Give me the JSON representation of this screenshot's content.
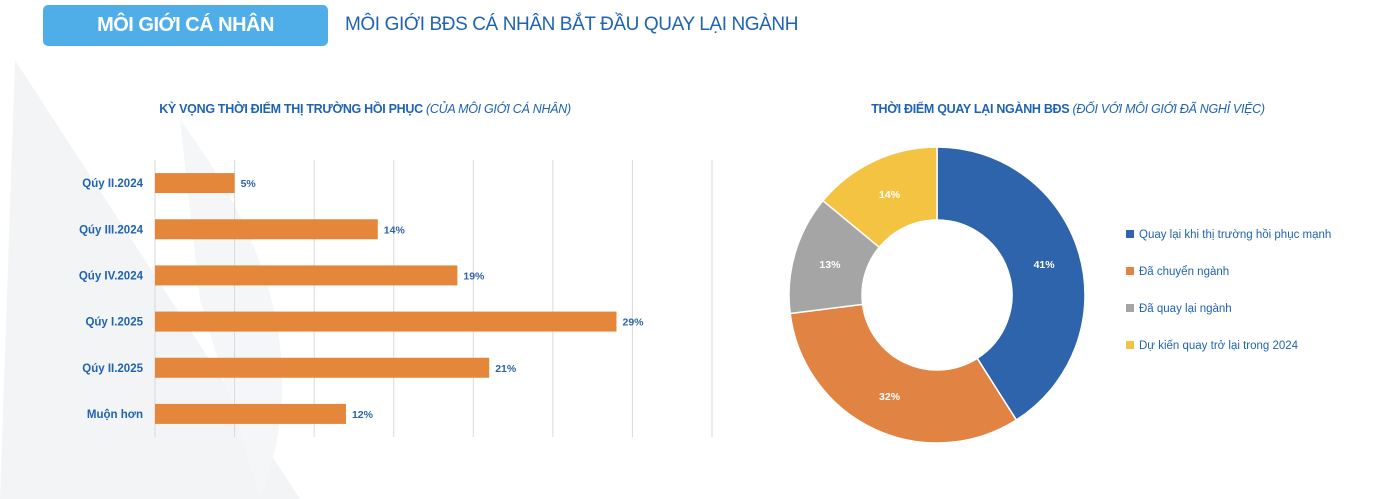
{
  "header": {
    "badge": "MÔI GIỚI CÁ NHÂN",
    "headline": "MÔI GIỚI BĐS CÁ NHÂN BẮT ĐẦU QUAY LẠI NGÀNH"
  },
  "colors": {
    "accent": "#4FAEE8",
    "text": "#1F63B3",
    "bar": "#E5873A"
  },
  "chart_data": [
    {
      "type": "bar",
      "orientation": "horizontal",
      "title": "KỲ VỌNG THỜI ĐIỂM THỊ TRƯỜNG HỒI PHỤC",
      "subtitle": "(CỦA MÔI GIỚI CÁ NHÂN)",
      "categories": [
        "Qúy II.2024",
        "Qúy III.2024",
        "Qúy IV.2024",
        "Qúy I.2025",
        "Qúy II.2025",
        "Muộn hơn"
      ],
      "values": [
        5,
        14,
        19,
        29,
        21,
        12
      ],
      "labels": [
        "5%",
        "14%",
        "19%",
        "29%",
        "21%",
        "12%"
      ],
      "xlim": [
        0,
        35
      ],
      "grid": true,
      "color": "#E5873A"
    },
    {
      "type": "pie",
      "donut": true,
      "title": "THỜI ĐIỂM QUAY LẠI NGÀNH BĐS",
      "subtitle": "(ĐỐI VỚI MÔI GIỚI ĐÃ NGHỈ VIỆC)",
      "legend_position": "right",
      "slices": [
        {
          "name": "Quay lại khi thị trường hồi phục mạnh",
          "value": 41,
          "label": "41%",
          "color": "#2E64AB"
        },
        {
          "name": "Đã chuyển ngành",
          "value": 32,
          "label": "32%",
          "color": "#E08343"
        },
        {
          "name": "Đã quay lại ngành",
          "value": 13,
          "label": "13%",
          "color": "#A5A5A5"
        },
        {
          "name": "Dự kiến quay trở lại trong 2024",
          "value": 14,
          "label": "14%",
          "color": "#F5C342"
        }
      ]
    }
  ]
}
